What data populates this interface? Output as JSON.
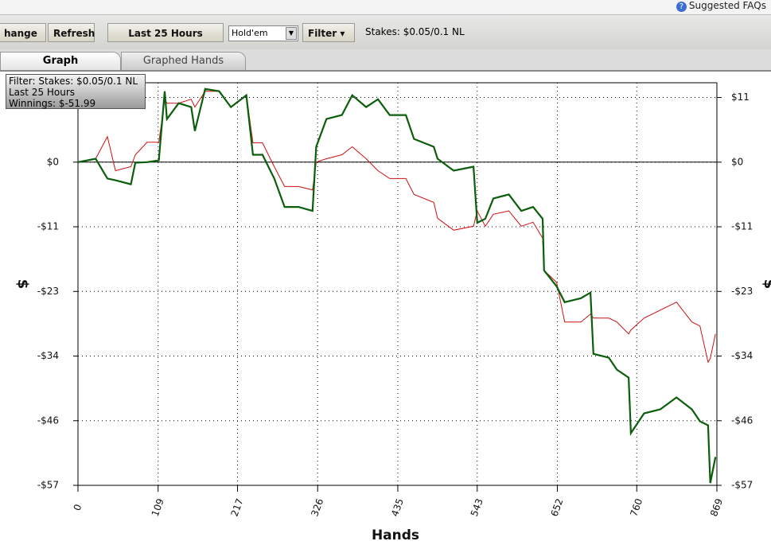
{
  "ui": {
    "help": "Suggested FAQs",
    "toolbar": {
      "change": "hange",
      "refresh": "Refresh",
      "range": "Last  25 Hours",
      "game": "Hold'em",
      "filter": "Filter",
      "stakes": "Stakes: $0.05/0.1 NL"
    },
    "tabs": [
      "Graph",
      "Graphed Hands"
    ],
    "tooltip": [
      "Filter: Stakes: $0.05/0.1 NL",
      "Last  25 Hours",
      "Winnings: $-51.99"
    ]
  },
  "chart_data": {
    "type": "line",
    "xlabel": "Hands",
    "ylabel": "$",
    "x": [
      0,
      24,
      40,
      51,
      72,
      78,
      94,
      110,
      118,
      121,
      137,
      154,
      159,
      173,
      192,
      208,
      229,
      238,
      251,
      267,
      281,
      300,
      319,
      324,
      338,
      359,
      373,
      392,
      408,
      424,
      446,
      457,
      484,
      489,
      511,
      538,
      543,
      554,
      565,
      586,
      603,
      619,
      632,
      634,
      651,
      662,
      684,
      697,
      701,
      722,
      733,
      749,
      752,
      770,
      792,
      814,
      835,
      846,
      857,
      860,
      867
    ],
    "series": [
      {
        "color": "#0b5e0b",
        "values": [
          0,
          0.6,
          -2.9,
          -3.2,
          -3.9,
          -0.1,
          0,
          0.3,
          12.5,
          7.6,
          10.4,
          9.7,
          5.5,
          12.9,
          12.5,
          9.7,
          11.8,
          1.3,
          1.3,
          -2.9,
          -7.9,
          -7.9,
          -8.6,
          2.7,
          7.6,
          8.3,
          11.8,
          9.7,
          11.1,
          8.3,
          8.3,
          4.1,
          2.7,
          0.6,
          -1.5,
          -0.8,
          -10.7,
          -10.0,
          -6.4,
          -5.7,
          -8.6,
          -7.9,
          -10.0,
          -19.1,
          -21.9,
          -24.7,
          -24.0,
          -23.0,
          -33.8,
          -34.5,
          -36.6,
          -38.0,
          -47.8,
          -44.3,
          -43.6,
          -41.5,
          -43.6,
          -45.7,
          -46.4,
          -56.6,
          -52.0
        ]
      },
      {
        "color": "#cc1111",
        "values": [
          0,
          0.6,
          4.5,
          -1.5,
          -0.8,
          1.3,
          3.5,
          3.5,
          11.0,
          10.4,
          10.4,
          11.1,
          9.7,
          12.5,
          12.5,
          9.7,
          11.8,
          3.4,
          3.4,
          -0.8,
          -4.3,
          -4.3,
          -4.9,
          0,
          0.6,
          1.3,
          2.7,
          0.6,
          -1.5,
          -2.9,
          -2.9,
          -5.7,
          -7.1,
          -9.9,
          -12.0,
          -11.3,
          -8.6,
          -11.3,
          -9.2,
          -8.6,
          -11.3,
          -10.6,
          -13.4,
          -19.1,
          -21.2,
          -28.2,
          -28.2,
          -26.8,
          -27.5,
          -27.5,
          -28.2,
          -30.3,
          -29.6,
          -27.5,
          -26.1,
          -24.7,
          -28.2,
          -28.9,
          -35.3,
          -34.6,
          -30.3
        ]
      }
    ],
    "xlim": [
      0,
      869
    ],
    "xticks": [
      0,
      109,
      217,
      326,
      435,
      543,
      652,
      760,
      869
    ],
    "ylim": [
      -57,
      14
    ],
    "yticks": [
      {
        "value": 11.4,
        "label": "$11"
      },
      {
        "value": 0,
        "label": "$0"
      },
      {
        "value": -11.4,
        "label": "-$11"
      },
      {
        "value": -22.8,
        "label": "-$23"
      },
      {
        "value": -34.2,
        "label": "-$34"
      },
      {
        "value": -45.6,
        "label": "-$46"
      },
      {
        "value": -57,
        "label": "-$57"
      }
    ],
    "grid": true
  }
}
